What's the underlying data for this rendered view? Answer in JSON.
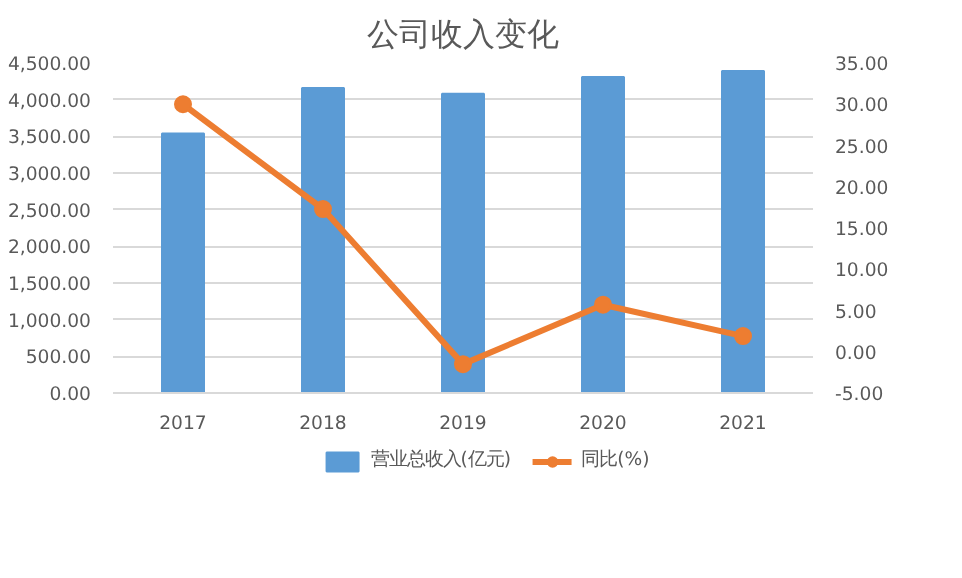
{
  "chart_data": {
    "type": "bar",
    "title": "公司收入变化",
    "categories": [
      "2017",
      "2018",
      "2019",
      "2020",
      "2021"
    ],
    "series": [
      {
        "name": "营业总收入(亿元)",
        "color": "#5b9bd5",
        "values": [
          3540,
          4160,
          4080,
          4310,
          4390
        ]
      },
      {
        "name": "同比(%)",
        "type": "line",
        "color": "#ed7d31",
        "axis": "y2",
        "marker": "circle",
        "values": [
          30.0,
          17.3,
          -1.5,
          5.7,
          1.9
        ]
      }
    ],
    "ylim": [
      0,
      4500
    ],
    "yticks": [
      {
        "value": 0,
        "label": "0.00"
      },
      {
        "value": 500,
        "label": "500.00"
      },
      {
        "value": 1000,
        "label": "1,000.00"
      },
      {
        "value": 1500,
        "label": "1,500.00"
      },
      {
        "value": 2000,
        "label": "2,000.00"
      },
      {
        "value": 2500,
        "label": "2,500.00"
      },
      {
        "value": 3000,
        "label": "3,000.00"
      },
      {
        "value": 3500,
        "label": "3,500.00"
      },
      {
        "value": 4000,
        "label": "4,000.00"
      },
      {
        "value": 4500,
        "label": "4,500.00"
      }
    ],
    "y2lim": [
      -5,
      35
    ],
    "y2ticks": [
      {
        "value": -5,
        "label": "-5.00"
      },
      {
        "value": 0,
        "label": "0.00"
      },
      {
        "value": 5,
        "label": "5.00"
      },
      {
        "value": 10,
        "label": "10.00"
      },
      {
        "value": 15,
        "label": "15.00"
      },
      {
        "value": 20,
        "label": "20.00"
      },
      {
        "value": 25,
        "label": "25.00"
      },
      {
        "value": 30,
        "label": "30.00"
      },
      {
        "value": 35,
        "label": "35.00"
      }
    ],
    "grid": "y",
    "legend": "bottom"
  }
}
